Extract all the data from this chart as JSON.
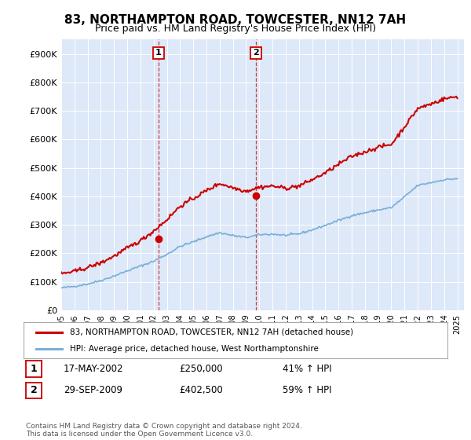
{
  "title": "83, NORTHAMPTON ROAD, TOWCESTER, NN12 7AH",
  "subtitle": "Price paid vs. HM Land Registry's House Price Index (HPI)",
  "plot_bg_color": "#dde8f8",
  "transaction1_label": "17-MAY-2002",
  "transaction1_price": 250000,
  "transaction1_hpi": "41% ↑ HPI",
  "transaction1_x": 2002.375,
  "transaction2_label": "29-SEP-2009",
  "transaction2_price": 402500,
  "transaction2_hpi": "59% ↑ HPI",
  "transaction2_x": 2009.75,
  "legend_line1": "83, NORTHAMPTON ROAD, TOWCESTER, NN12 7AH (detached house)",
  "legend_line2": "HPI: Average price, detached house, West Northamptonshire",
  "footer": "Contains HM Land Registry data © Crown copyright and database right 2024.\nThis data is licensed under the Open Government Licence v3.0.",
  "red_color": "#cc0000",
  "blue_color": "#7aaed6",
  "ylim": [
    0,
    950000
  ],
  "yticks": [
    0,
    100000,
    200000,
    300000,
    400000,
    500000,
    600000,
    700000,
    800000,
    900000
  ],
  "ytick_labels": [
    "£0",
    "£100K",
    "£200K",
    "£300K",
    "£400K",
    "£500K",
    "£600K",
    "£700K",
    "£800K",
    "£900K"
  ],
  "years_anchor": [
    1995,
    1996,
    1997,
    1998,
    1999,
    2000,
    2001,
    2002,
    2003,
    2004,
    2005,
    2006,
    2007,
    2008,
    2009,
    2010,
    2011,
    2012,
    2013,
    2014,
    2015,
    2016,
    2017,
    2018,
    2019,
    2020,
    2021,
    2022,
    2023,
    2024,
    2025
  ],
  "hpi_anchor": [
    78000,
    84000,
    92000,
    104000,
    120000,
    138000,
    155000,
    172000,
    196000,
    224000,
    240000,
    258000,
    272000,
    262000,
    255000,
    265000,
    267000,
    263000,
    268000,
    282000,
    298000,
    315000,
    332000,
    342000,
    352000,
    360000,
    398000,
    438000,
    448000,
    458000,
    462000
  ],
  "red_anchor": [
    128000,
    136000,
    150000,
    166000,
    190000,
    218000,
    244000,
    278000,
    318000,
    365000,
    392000,
    420000,
    445000,
    430000,
    418000,
    432000,
    436000,
    428000,
    436000,
    458000,
    482000,
    512000,
    540000,
    556000,
    572000,
    582000,
    644000,
    708000,
    724000,
    742000,
    750000
  ]
}
